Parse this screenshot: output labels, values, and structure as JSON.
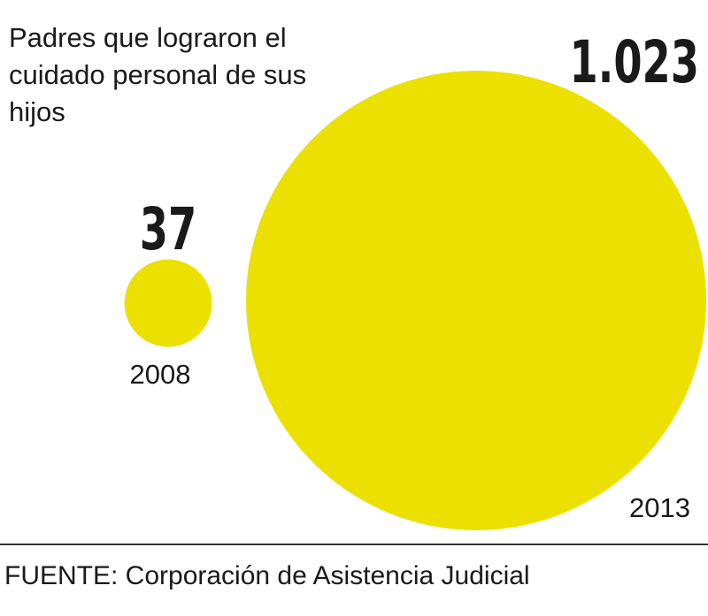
{
  "title": "Padres que lograron el cuidado personal de sus hijos",
  "source": "FUENTE: Corporación de Asistencia Judicial",
  "colors": {
    "bubble": "#ebe000",
    "text": "#1a1a1a"
  },
  "chart_data": {
    "type": "bubble",
    "title": "Padres que lograron el cuidado personal de sus hijos",
    "categories": [
      "2008",
      "2013"
    ],
    "values": [
      37,
      1023
    ],
    "value_labels": [
      "37",
      "1.023"
    ],
    "xlabel": "",
    "ylabel": ""
  }
}
